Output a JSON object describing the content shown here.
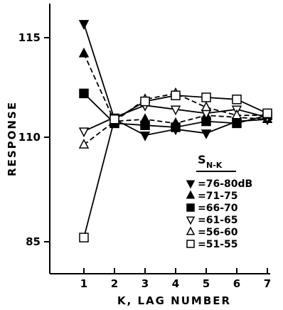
{
  "chart_data": {
    "type": "line",
    "xlabel": "K, LAG NUMBER",
    "ylabel": "RESPONSE",
    "x": [
      1,
      2,
      3,
      4,
      5,
      6,
      7
    ],
    "x_ticks": [
      "1",
      "2",
      "3",
      "4",
      "5",
      "6",
      "7"
    ],
    "y_ticks": [
      {
        "value": 85,
        "label": "85"
      },
      {
        "value": 110,
        "label": "110"
      },
      {
        "value": 115,
        "label": "115"
      }
    ],
    "legend_title_main": "S",
    "legend_title_sub": "N-K",
    "legend_placement": "bottom-right",
    "grid": false,
    "series": [
      {
        "name": "=76-80dB",
        "marker": "triangle-down",
        "filled": true,
        "dashed": false,
        "values": [
          115.7,
          110.9,
          110.1,
          110.4,
          110.2,
          110.8,
          110.9
        ]
      },
      {
        "name": "=71-75",
        "marker": "triangle-up",
        "filled": true,
        "dashed": true,
        "values": [
          114.2,
          110.8,
          110.9,
          110.7,
          111.1,
          111.0,
          110.9
        ]
      },
      {
        "name": "=66-70",
        "marker": "square",
        "filled": true,
        "dashed": false,
        "values": [
          112.2,
          110.7,
          110.6,
          110.5,
          110.8,
          110.7,
          111.1
        ]
      },
      {
        "name": "=61-65",
        "marker": "triangle-down",
        "filled": false,
        "dashed": false,
        "values": [
          110.3,
          111.0,
          111.6,
          111.4,
          111.2,
          111.4,
          111.0
        ]
      },
      {
        "name": "=56-60",
        "marker": "triangle-up",
        "filled": false,
        "dashed": true,
        "values": [
          108.2,
          110.8,
          111.9,
          112.2,
          111.5,
          111.1,
          111.1
        ]
      },
      {
        "name": "=51-55",
        "marker": "square",
        "filled": false,
        "dashed": false,
        "values": [
          86.0,
          110.9,
          111.8,
          112.1,
          112.0,
          111.9,
          111.2
        ]
      }
    ]
  }
}
